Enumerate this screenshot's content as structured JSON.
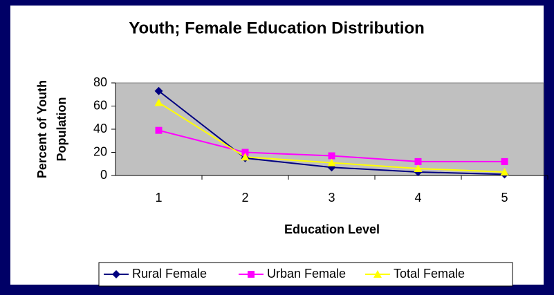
{
  "chart_data": {
    "type": "line",
    "title": "Youth; Female Education Distribution",
    "xlabel": "Education Level",
    "ylabel": [
      "Percent of Youth",
      "Population"
    ],
    "categories": [
      1,
      2,
      3,
      4,
      5
    ],
    "series": [
      {
        "name": "Rural Female",
        "color": "#000080",
        "marker": "diamond",
        "values": [
          73,
          15,
          7,
          3,
          1
        ]
      },
      {
        "name": "Urban Female",
        "color": "#ff00ff",
        "marker": "square",
        "values": [
          39,
          20,
          17,
          12,
          12
        ]
      },
      {
        "name": "Total Female",
        "color": "#ffff00",
        "marker": "triangle",
        "values": [
          63,
          16,
          11,
          6,
          3
        ]
      }
    ],
    "ylim": [
      0,
      80
    ],
    "yticks": [
      0,
      20,
      40,
      60,
      80
    ],
    "legend": "bottom"
  }
}
